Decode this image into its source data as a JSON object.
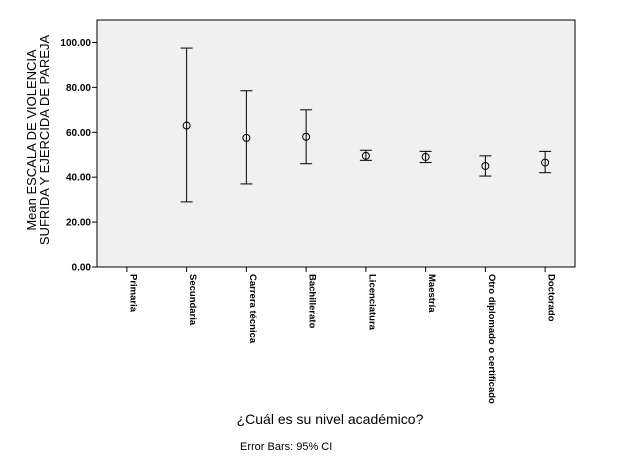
{
  "chart_data": {
    "type": "errorbar",
    "categories": [
      "Primaria",
      "Secundaria",
      "Carrera técnica",
      "Bachillerato",
      "Licenciatura",
      "Maestría",
      "Otro diplomado o certificado",
      "Doctorado"
    ],
    "means": [
      null,
      63.0,
      57.5,
      58.0,
      49.5,
      49.0,
      45.0,
      46.5
    ],
    "ci_lower": [
      null,
      29.0,
      37.0,
      46.0,
      47.5,
      46.5,
      40.5,
      42.0
    ],
    "ci_upper": [
      null,
      97.5,
      78.5,
      70.0,
      52.0,
      51.5,
      49.5,
      51.5
    ],
    "ylim": [
      0,
      110
    ],
    "yticks": [
      "0.00",
      "20.00",
      "40.00",
      "60.00",
      "80.00",
      "100.00"
    ],
    "ylabel_line1": "Mean ESCALA DE VIOLENCIA",
    "ylabel_line2": "SUFRIDA Y EJERCIDA DE PAREJA",
    "xlabel": "¿Cuál es su nivel académico?",
    "note": "Error Bars: 95% CI"
  }
}
